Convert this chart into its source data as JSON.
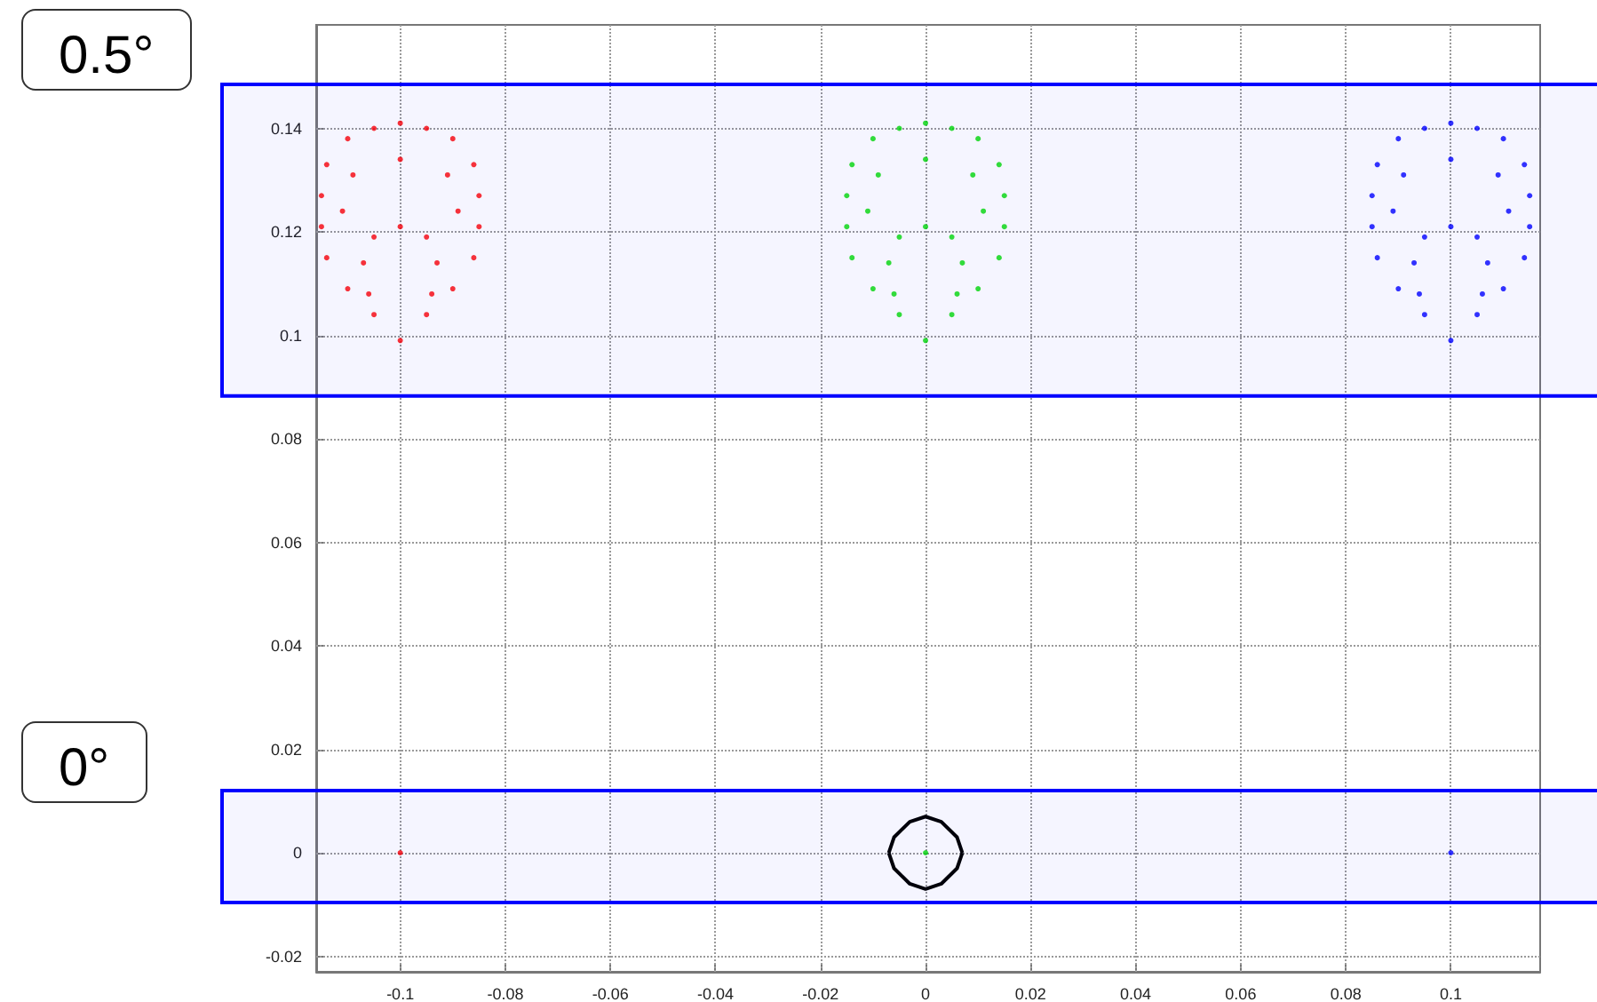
{
  "chart_data": {
    "type": "scatter",
    "annotations": [
      "0.5°",
      "0°"
    ],
    "xlim": [
      -0.116,
      0.117
    ],
    "ylim": [
      -0.023,
      0.16
    ],
    "xticks": [
      -0.1,
      -0.08,
      -0.06,
      -0.04,
      -0.02,
      0,
      0.02,
      0.04,
      0.06,
      0.08,
      0.1
    ],
    "yticks": [
      -0.02,
      0,
      0.02,
      0.04,
      0.06,
      0.08,
      0.1,
      0.12,
      0.14
    ],
    "grid": true,
    "marker": "circle",
    "bands": [
      {
        "axis": "y",
        "from": 0.0883,
        "to": 0.1485,
        "color": "#0000ff"
      },
      {
        "axis": "y",
        "from": -0.0096,
        "to": 0.012,
        "color": "#0000ff"
      }
    ],
    "series": [
      {
        "color": "#ff0000",
        "x": [
          -0.1,
          -0.105,
          -0.11,
          -0.114,
          -0.115,
          -0.115,
          -0.114,
          -0.11,
          -0.105,
          -0.1,
          -0.095,
          -0.09,
          -0.086,
          -0.085,
          -0.085,
          -0.086,
          -0.09,
          -0.095,
          -0.106,
          -0.107,
          -0.105,
          -0.1,
          -0.095,
          -0.093,
          -0.094,
          -0.111,
          -0.109,
          -0.1,
          -0.091,
          -0.089,
          -0.1
        ],
        "values": [
          0.099,
          0.104,
          0.109,
          0.115,
          0.121,
          0.127,
          0.133,
          0.138,
          0.14,
          0.141,
          0.14,
          0.138,
          0.133,
          0.127,
          0.121,
          0.115,
          0.109,
          0.104,
          0.108,
          0.114,
          0.119,
          0.121,
          0.119,
          0.114,
          0.108,
          0.124,
          0.131,
          0.134,
          0.131,
          0.124,
          0
        ]
      },
      {
        "color": "#00dd00",
        "x": [
          0,
          -0.005,
          -0.01,
          -0.014,
          -0.015,
          -0.015,
          -0.014,
          -0.01,
          -0.005,
          0,
          0.005,
          0.01,
          0.014,
          0.015,
          0.015,
          0.014,
          0.01,
          0.005,
          -0.006,
          -0.007,
          -0.005,
          0,
          0.005,
          0.007,
          0.006,
          -0.011,
          -0.009,
          0,
          0.009,
          0.011,
          0
        ],
        "values": [
          0.099,
          0.104,
          0.109,
          0.115,
          0.121,
          0.127,
          0.133,
          0.138,
          0.14,
          0.141,
          0.14,
          0.138,
          0.133,
          0.127,
          0.121,
          0.115,
          0.109,
          0.104,
          0.108,
          0.114,
          0.119,
          0.121,
          0.119,
          0.114,
          0.108,
          0.124,
          0.131,
          0.134,
          0.131,
          0.124,
          0
        ]
      },
      {
        "color": "#0000ff",
        "x": [
          0.1,
          0.095,
          0.09,
          0.086,
          0.085,
          0.085,
          0.086,
          0.09,
          0.095,
          0.1,
          0.105,
          0.11,
          0.114,
          0.115,
          0.115,
          0.114,
          0.11,
          0.105,
          0.094,
          0.093,
          0.095,
          0.1,
          0.105,
          0.107,
          0.106,
          0.089,
          0.091,
          0.1,
          0.109,
          0.111,
          0.1
        ],
        "values": [
          0.099,
          0.104,
          0.109,
          0.115,
          0.121,
          0.127,
          0.133,
          0.138,
          0.14,
          0.141,
          0.14,
          0.138,
          0.133,
          0.127,
          0.121,
          0.115,
          0.109,
          0.104,
          0.108,
          0.114,
          0.119,
          0.121,
          0.119,
          0.114,
          0.108,
          0.124,
          0.131,
          0.134,
          0.131,
          0.124,
          0
        ]
      },
      {
        "type": "line",
        "color": "#000000",
        "marker": "none",
        "x": [
          -0.007,
          -0.006,
          -0.003,
          0,
          0.003,
          0.006,
          0.007
        ],
        "values": [
          0,
          0.003,
          0.006,
          0.007,
          0.006,
          0.003,
          0
        ]
      },
      {
        "type": "line",
        "color": "#000000",
        "marker": "none",
        "x": [
          -0.007,
          -0.006,
          -0.003,
          0,
          0.003,
          0.006,
          0.007
        ],
        "values": [
          0,
          -0.003,
          -0.006,
          -0.007,
          -0.006,
          -0.003,
          0
        ]
      }
    ]
  }
}
